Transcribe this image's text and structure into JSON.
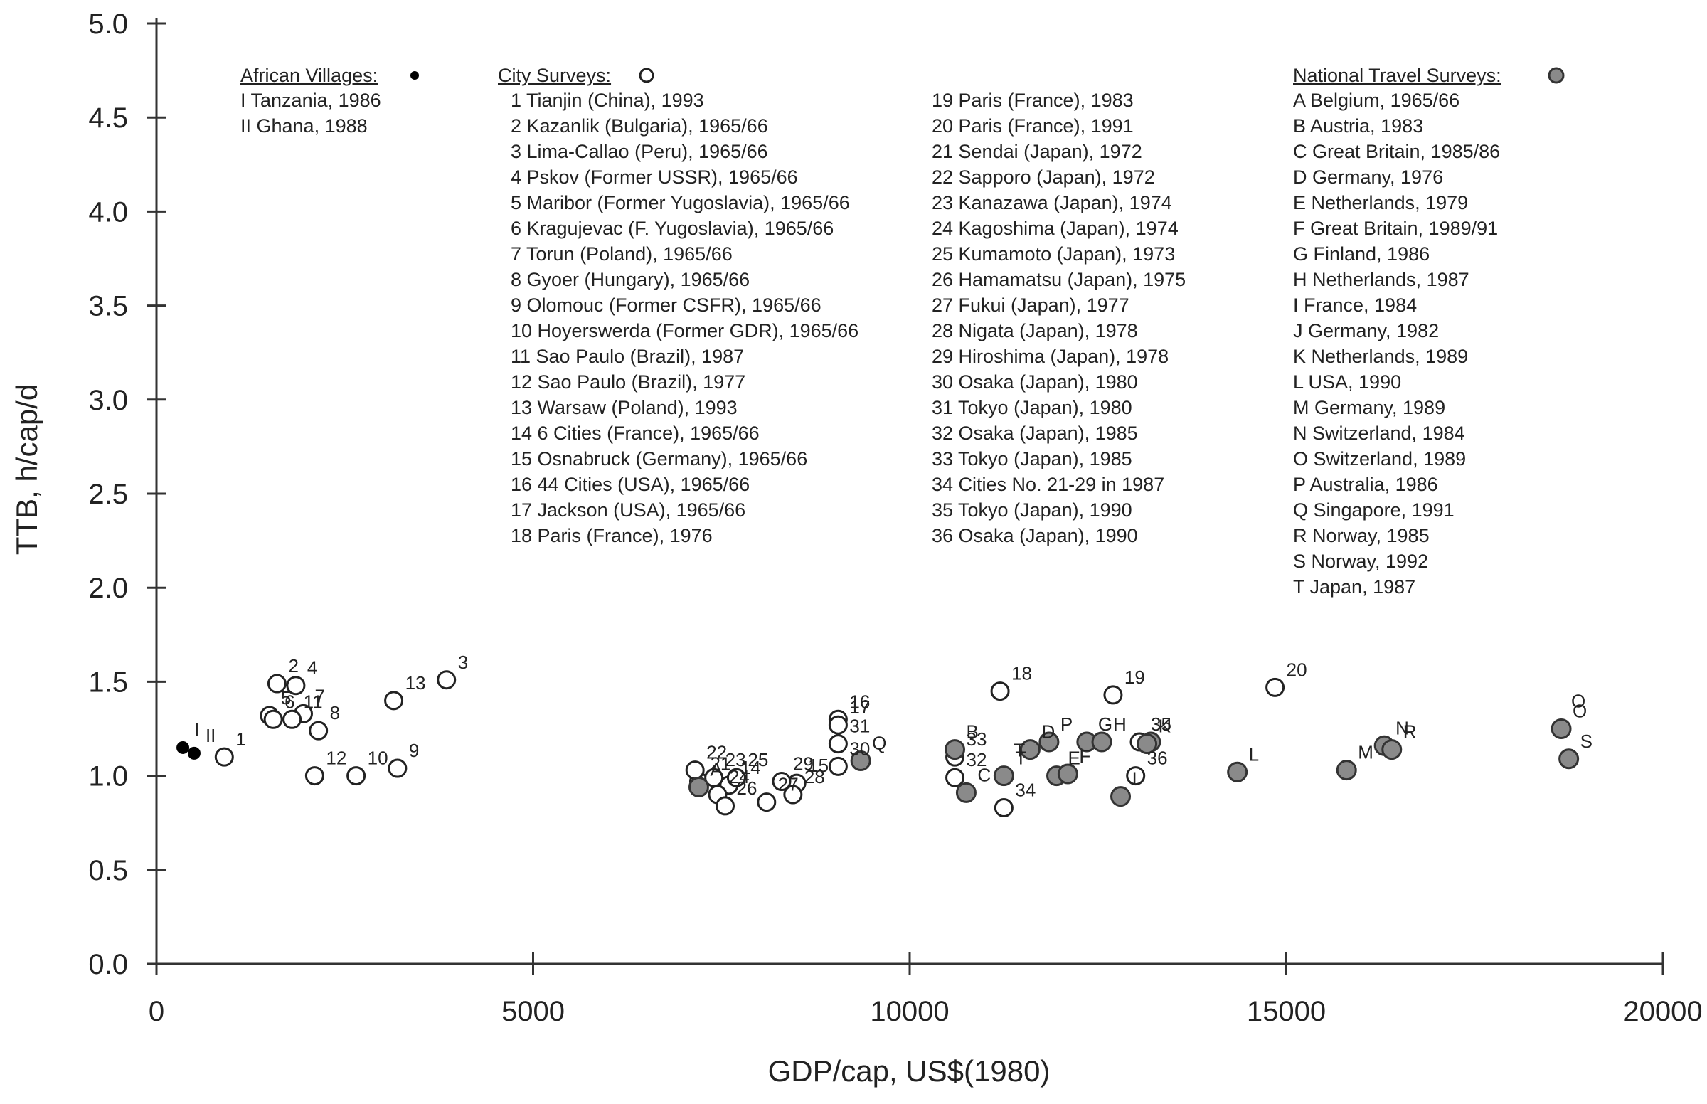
{
  "chart_data": {
    "type": "scatter",
    "title": "",
    "xlabel": "GDP/cap, US$(1980)",
    "ylabel": "TTB, h/cap/d",
    "xlim": [
      0,
      20000
    ],
    "ylim": [
      0,
      5.0
    ],
    "xticks": [
      0,
      5000,
      10000,
      15000,
      20000
    ],
    "yticks": [
      0.0,
      0.5,
      1.0,
      1.5,
      2.0,
      2.5,
      3.0,
      3.5,
      4.0,
      4.5,
      5.0
    ],
    "xtick_labels": [
      "0",
      "5000",
      "10000",
      "15000",
      "20000"
    ],
    "ytick_labels": [
      "0.0",
      "0.5",
      "1.0",
      "1.5",
      "2.0",
      "2.5",
      "3.0",
      "3.5",
      "4.0",
      "4.5",
      "5.0"
    ],
    "grid": false,
    "legend_placement": "top",
    "series": [
      {
        "name": "African Villages:",
        "marker": "filled-black-circle",
        "points": [
          {
            "label": "I",
            "x": 350,
            "y": 1.15
          },
          {
            "label": "II",
            "x": 500,
            "y": 1.12
          }
        ]
      },
      {
        "name": "City Surveys:",
        "marker": "open-circle",
        "points": [
          {
            "label": "1",
            "x": 900,
            "y": 1.1
          },
          {
            "label": "2",
            "x": 1600,
            "y": 1.49
          },
          {
            "label": "3",
            "x": 3850,
            "y": 1.51
          },
          {
            "label": "4",
            "x": 1850,
            "y": 1.48
          },
          {
            "label": "5",
            "x": 1500,
            "y": 1.32
          },
          {
            "label": "6",
            "x": 1550,
            "y": 1.3
          },
          {
            "label": "7",
            "x": 1950,
            "y": 1.33
          },
          {
            "label": "8",
            "x": 2150,
            "y": 1.24
          },
          {
            "label": "9",
            "x": 3200,
            "y": 1.04
          },
          {
            "label": "10",
            "x": 2650,
            "y": 1.0
          },
          {
            "label": "11",
            "x": 1800,
            "y": 1.3
          },
          {
            "label": "12",
            "x": 2100,
            "y": 1.0
          },
          {
            "label": "13",
            "x": 3150,
            "y": 1.4
          },
          {
            "label": "14",
            "x": 7600,
            "y": 0.95
          },
          {
            "label": "15",
            "x": 8500,
            "y": 0.96
          },
          {
            "label": "16",
            "x": 9050,
            "y": 1.3
          },
          {
            "label": "17",
            "x": 9050,
            "y": 1.27
          },
          {
            "label": "18",
            "x": 11200,
            "y": 1.45
          },
          {
            "label": "19",
            "x": 12700,
            "y": 1.43
          },
          {
            "label": "20",
            "x": 14850,
            "y": 1.47
          },
          {
            "label": "21",
            "x": 7200,
            "y": 0.97
          },
          {
            "label": "22",
            "x": 7150,
            "y": 1.03
          },
          {
            "label": "23",
            "x": 7400,
            "y": 0.99
          },
          {
            "label": "24",
            "x": 7450,
            "y": 0.9
          },
          {
            "label": "25",
            "x": 7700,
            "y": 0.99
          },
          {
            "label": "26",
            "x": 7550,
            "y": 0.84
          },
          {
            "label": "27",
            "x": 8100,
            "y": 0.86
          },
          {
            "label": "28",
            "x": 8450,
            "y": 0.9
          },
          {
            "label": "29",
            "x": 8300,
            "y": 0.97
          },
          {
            "label": "30",
            "x": 9050,
            "y": 1.05
          },
          {
            "label": "31",
            "x": 9050,
            "y": 1.17
          },
          {
            "label": "32",
            "x": 10600,
            "y": 0.99
          },
          {
            "label": "33",
            "x": 10600,
            "y": 1.1
          },
          {
            "label": "34",
            "x": 11250,
            "y": 0.83
          },
          {
            "label": "35",
            "x": 13050,
            "y": 1.18
          },
          {
            "label": "36",
            "x": 13000,
            "y": 1.0
          }
        ]
      },
      {
        "name": "National Travel Surveys:",
        "marker": "filled-grey-circle",
        "points": [
          {
            "label": "A",
            "x": 7200,
            "y": 0.94
          },
          {
            "label": "B",
            "x": 10600,
            "y": 1.14
          },
          {
            "label": "C",
            "x": 10750,
            "y": 0.91
          },
          {
            "label": "D",
            "x": 11600,
            "y": 1.14
          },
          {
            "label": "E",
            "x": 11950,
            "y": 1.0
          },
          {
            "label": "F",
            "x": 12100,
            "y": 1.01
          },
          {
            "label": "G",
            "x": 12350,
            "y": 1.18
          },
          {
            "label": "H",
            "x": 12550,
            "y": 1.18
          },
          {
            "label": "I",
            "x": 12800,
            "y": 0.89
          },
          {
            "label": "J",
            "x": 13200,
            "y": 1.18
          },
          {
            "label": "K",
            "x": 13150,
            "y": 1.17
          },
          {
            "label": "L",
            "x": 14350,
            "y": 1.02
          },
          {
            "label": "M",
            "x": 15800,
            "y": 1.03
          },
          {
            "label": "N",
            "x": 16300,
            "y": 1.16
          },
          {
            "label": "O",
            "x": 18650,
            "y": 1.25
          },
          {
            "label": "P",
            "x": 11850,
            "y": 1.18
          },
          {
            "label": "Q",
            "x": 9350,
            "y": 1.08
          },
          {
            "label": "R",
            "x": 16400,
            "y": 1.14
          },
          {
            "label": "S",
            "x": 18750,
            "y": 1.09
          },
          {
            "label": "T",
            "x": 11250,
            "y": 1.0
          }
        ]
      }
    ],
    "annotations": [
      {
        "text": "T",
        "x": 11250,
        "y": 1.08
      },
      {
        "text": "O",
        "x": 18650,
        "y": 1.34
      }
    ],
    "legend": {
      "african_villages": {
        "heading": "African Villages:",
        "items": [
          "I  Tanzania, 1986",
          "II Ghana, 1988"
        ]
      },
      "city_surveys": {
        "heading": "City Surveys:",
        "items": [
          "1  Tianjin (China), 1993",
          "2  Kazanlik (Bulgaria), 1965/66",
          "3  Lima-Callao (Peru), 1965/66",
          "4  Pskov (Former USSR), 1965/66",
          "5  Maribor (Former Yugoslavia), 1965/66",
          "6  Kragujevac (F. Yugoslavia), 1965/66",
          "7  Torun (Poland), 1965/66",
          "8  Gyoer (Hungary), 1965/66",
          "9  Olomouc (Former CSFR), 1965/66",
          "10  Hoyerswerda (Former GDR), 1965/66",
          "11  Sao Paulo (Brazil), 1987",
          "12  Sao Paulo (Brazil), 1977",
          "13  Warsaw (Poland), 1993",
          "14  6 Cities (France), 1965/66",
          "15  Osnabruck (Germany), 1965/66",
          "16  44 Cities (USA), 1965/66",
          "17  Jackson (USA), 1965/66",
          "18  Paris (France), 1976"
        ],
        "items_col2": [
          "19  Paris (France), 1983",
          "20  Paris (France), 1991",
          "21  Sendai (Japan), 1972",
          "22  Sapporo (Japan), 1972",
          "23  Kanazawa (Japan), 1974",
          "24  Kagoshima (Japan), 1974",
          "25  Kumamoto (Japan), 1973",
          "26  Hamamatsu (Japan), 1975",
          "27  Fukui (Japan), 1977",
          "28  Nigata (Japan), 1978",
          "29  Hiroshima (Japan), 1978",
          "30  Osaka (Japan), 1980",
          "31  Tokyo (Japan), 1980",
          "32  Osaka (Japan), 1985",
          "33  Tokyo (Japan), 1985",
          "34  Cities No. 21-29 in 1987",
          "35  Tokyo (Japan), 1990",
          "36  Osaka (Japan), 1990"
        ]
      },
      "national_travel_surveys": {
        "heading": "National Travel Surveys:",
        "items": [
          "A  Belgium, 1965/66",
          "B  Austria, 1983",
          "C  Great Britain, 1985/86",
          "D  Germany, 1976",
          "E  Netherlands, 1979",
          "F  Great Britain, 1989/91",
          "G  Finland, 1986",
          "H  Netherlands, 1987",
          "I    France, 1984",
          "J   Germany, 1982",
          "K  Netherlands, 1989",
          "L  USA, 1990",
          "M Germany, 1989",
          "N  Switzerland, 1984",
          "O  Switzerland, 1989",
          "P  Australia, 1986",
          "Q  Singapore, 1991",
          "R  Norway, 1985",
          "S  Norway, 1992",
          "T  Japan, 1987"
        ]
      }
    }
  }
}
